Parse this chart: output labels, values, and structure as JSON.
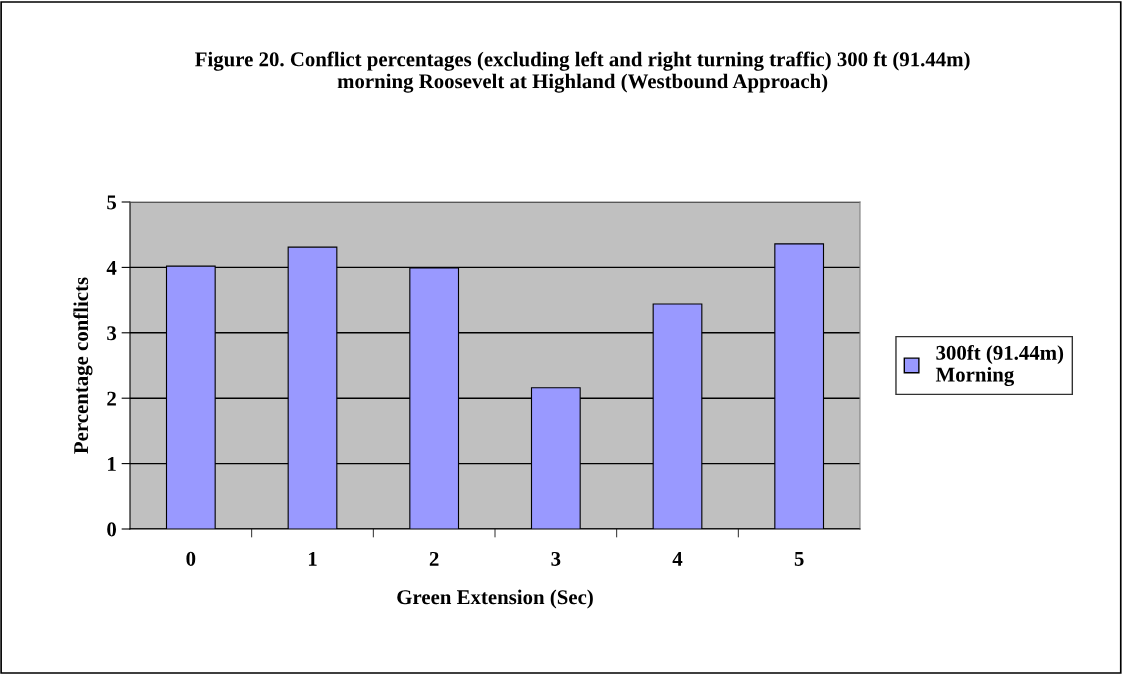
{
  "chart_data": {
    "type": "bar",
    "title": "Figure 20. Conflict percentages (excluding left and right turning traffic) 300 ft (91.44m)\nmorning Roosevelt at Highland (Westbound Approach)",
    "xlabel": "Green Extension (Sec)",
    "ylabel": "Percentage conflicts",
    "categories": [
      "0",
      "1",
      "2",
      "3",
      "4",
      "5"
    ],
    "series": [
      {
        "name": "300ft (91.44m)\nMorning",
        "color": "#9999ff",
        "values": [
          4.02,
          4.31,
          3.99,
          2.16,
          3.44,
          4.36
        ]
      }
    ],
    "ylim": [
      0,
      5
    ],
    "yticks": [
      0,
      1,
      2,
      3,
      4,
      5
    ],
    "grid": "y",
    "legend": "right"
  }
}
